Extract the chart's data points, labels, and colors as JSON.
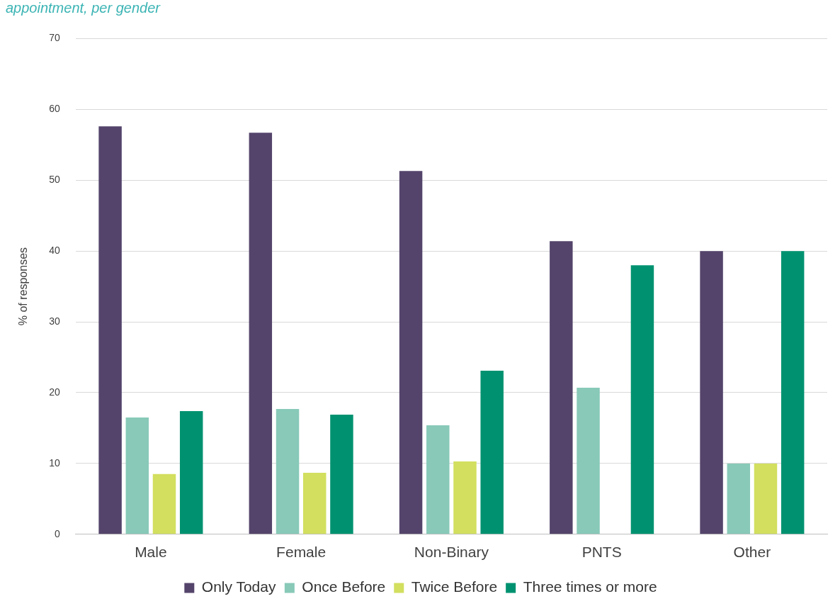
{
  "chart_data": {
    "type": "bar",
    "title": "appointment, per gender",
    "ylabel": "% of responses",
    "categories": [
      "Male",
      "Female",
      "Non-Binary",
      "PNTS",
      "Other"
    ],
    "series": [
      {
        "name": "Only Today",
        "color": "#54446b",
        "values": [
          57.6,
          56.7,
          51.3,
          41.4,
          40
        ]
      },
      {
        "name": "Once Before",
        "color": "#88c9b8",
        "values": [
          16.5,
          17.7,
          15.4,
          20.7,
          10
        ]
      },
      {
        "name": "Twice Before",
        "color": "#d2df5f",
        "values": [
          8.5,
          8.7,
          10.3,
          0,
          10
        ]
      },
      {
        "name": "Three times or more",
        "color": "#009270",
        "values": [
          17.4,
          16.9,
          23.1,
          38,
          40
        ]
      }
    ],
    "ylim": [
      0,
      70
    ],
    "yticks": [
      0,
      10,
      20,
      30,
      40,
      50,
      60,
      70
    ],
    "grid": "y",
    "legend": "bottom"
  }
}
